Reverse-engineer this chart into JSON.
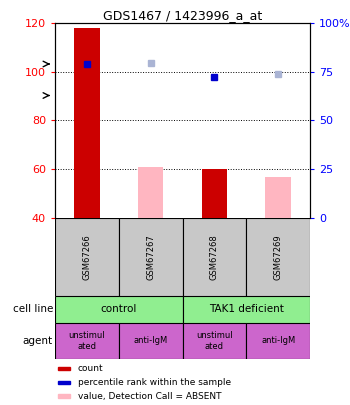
{
  "title": "GDS1467 / 1423996_a_at",
  "samples": [
    "GSM67266",
    "GSM67267",
    "GSM67268",
    "GSM67269"
  ],
  "count_values": [
    118,
    0,
    60,
    0
  ],
  "count_present": [
    true,
    false,
    true,
    false
  ],
  "count_color": "#cc0000",
  "absent_bar_values": [
    0,
    61,
    0,
    57
  ],
  "absent_bar_present": [
    false,
    true,
    false,
    true
  ],
  "absent_bar_color": "#ffb6c1",
  "percentile_present": [
    true,
    false,
    true,
    false
  ],
  "percentile_values": [
    103,
    0,
    98,
    0
  ],
  "percentile_color": "#0000cc",
  "absent_rank_present": [
    false,
    true,
    false,
    true
  ],
  "absent_rank_values": [
    0,
    103.5,
    0,
    99
  ],
  "absent_rank_color": "#aab4d4",
  "ylim_left": [
    40,
    120
  ],
  "ylim_right": [
    0,
    100
  ],
  "yticks_left": [
    40,
    60,
    80,
    100,
    120
  ],
  "yticks_right": [
    0,
    25,
    50,
    75,
    100
  ],
  "ytick_labels_right": [
    "0",
    "25",
    "50",
    "75",
    "100%"
  ],
  "cell_line_labels": [
    "control",
    "TAK1 deficient"
  ],
  "cell_line_spans": [
    [
      0,
      2
    ],
    [
      2,
      4
    ]
  ],
  "cell_line_color": "#90ee90",
  "agent_labels": [
    "unstimul\nated",
    "anti-IgM",
    "unstimul\nated",
    "anti-IgM"
  ],
  "agent_color": "#cc66cc",
  "legend_items": [
    {
      "color": "#cc0000",
      "label": "count"
    },
    {
      "color": "#0000cc",
      "label": "percentile rank within the sample"
    },
    {
      "color": "#ffb6c1",
      "label": "value, Detection Call = ABSENT"
    },
    {
      "color": "#aab4d4",
      "label": "rank, Detection Call = ABSENT"
    }
  ],
  "bar_bottom": 40,
  "bar_width": 0.4,
  "sample_box_color": "#c8c8c8",
  "grid_color": "black",
  "grid_linestyle": ":",
  "grid_linewidth": 0.7
}
